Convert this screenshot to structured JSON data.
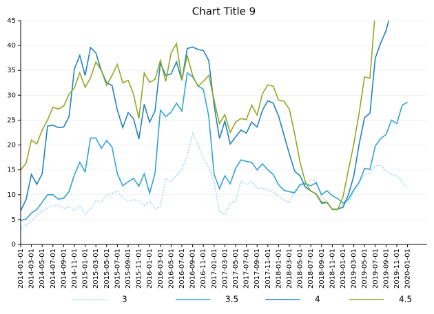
{
  "chart_data": {
    "type": "line",
    "title": "Chart Title 9",
    "categories": [
      "2014-01-01",
      "2014-02-01",
      "2014-03-01",
      "2014-04-01",
      "2014-05-01",
      "2014-06-01",
      "2014-07-01",
      "2014-08-01",
      "2014-09-01",
      "2014-10-01",
      "2014-11-01",
      "2014-12-01",
      "2015-01-01",
      "2015-02-01",
      "2015-03-01",
      "2015-04-01",
      "2015-05-01",
      "2015-06-01",
      "2015-07-01",
      "2015-08-01",
      "2015-09-01",
      "2015-10-01",
      "2015-11-01",
      "2015-12-01",
      "2016-01-01",
      "2016-02-01",
      "2016-03-01",
      "2016-04-01",
      "2016-05-01",
      "2016-06-01",
      "2016-07-01",
      "2016-08-01",
      "2016-09-01",
      "2016-10-01",
      "2016-11-01",
      "2016-12-01",
      "2017-01-01",
      "2017-02-01",
      "2017-03-01",
      "2017-04-01",
      "2017-05-01",
      "2017-06-01",
      "2017-07-01",
      "2017-08-01",
      "2017-09-01",
      "2017-10-01",
      "2017-11-01",
      "2017-12-01",
      "2018-01-01",
      "2018-02-01",
      "2018-03-01",
      "2018-04-01",
      "2018-05-01",
      "2018-06-01",
      "2018-07-01",
      "2018-08-01",
      "2018-09-01",
      "2018-10-01",
      "2018-11-01",
      "2018-12-01",
      "2019-01-01",
      "2019-02-01",
      "2019-03-01",
      "2019-04-01",
      "2019-05-01",
      "2019-06-01",
      "2019-07-01",
      "2019-08-01",
      "2019-09-01",
      "2019-10-01",
      "2019-11-01",
      "2019-12-01",
      "2020-01-01"
    ],
    "series": [
      {
        "name": "3",
        "color": "#9fd8ee",
        "dash": "dotted",
        "values": [
          3.2,
          3.8,
          4.6,
          5.8,
          6.8,
          7.3,
          7.8,
          7.9,
          7.2,
          7.5,
          6.9,
          7.8,
          6.1,
          7.1,
          8.8,
          8.5,
          10,
          10.3,
          10.7,
          9.4,
          8.7,
          9,
          8.8,
          7.8,
          8.7,
          7.1,
          7.7,
          13.3,
          12.6,
          13.8,
          15.2,
          17.9,
          22.3,
          20,
          17.3,
          15.6,
          12.4,
          6.7,
          6,
          8.3,
          8.7,
          12.7,
          12.1,
          12.7,
          11.2,
          11.3,
          11,
          10.5,
          9.7,
          8.9,
          8.4,
          10.8,
          11.8,
          12.1,
          13,
          12.8,
          9.5,
          8.8,
          7.1,
          7,
          8.1,
          8.5,
          10.5,
          12.5,
          14.1,
          14.3,
          15.8,
          16,
          14.8,
          14.1,
          13.8,
          12.6,
          11.4
        ]
      },
      {
        "name": "3.5",
        "color": "#2ea3d6",
        "values": [
          4.8,
          5.1,
          6.3,
          7,
          8.5,
          10,
          10,
          9.1,
          9.3,
          10.6,
          14,
          16.5,
          14.6,
          21.4,
          21.4,
          19.3,
          20.9,
          19.6,
          14.2,
          11.8,
          12.6,
          13.3,
          11.7,
          14.2,
          10.3,
          14.3,
          27,
          25.7,
          26.6,
          28.4,
          26.8,
          34.5,
          33.7,
          31.9,
          31.2,
          25.8,
          14.1,
          11.2,
          13.8,
          12.2,
          15.3,
          17,
          16.7,
          16.5,
          15,
          16.2,
          15,
          14.1,
          12,
          10.9,
          10.6,
          10.4,
          12.1,
          12.2,
          11.8,
          12.4,
          10,
          10.8,
          9.8,
          9.2,
          8.3,
          9.1,
          11,
          12.5,
          15.3,
          15.1,
          19.8,
          21.3,
          22.1,
          25,
          24.3,
          28,
          28.6
        ]
      },
      {
        "name": "4",
        "color": "#1f82c0",
        "values": [
          6.8,
          9,
          14.1,
          12.1,
          14.2,
          23.8,
          24,
          23.5,
          23.6,
          25.7,
          35.3,
          38,
          34,
          39.6,
          38.5,
          35,
          32.5,
          32,
          27,
          23.5,
          26.5,
          25.3,
          21.2,
          28.2,
          24.6,
          26.8,
          36.5,
          34,
          34.3,
          36.7,
          33,
          39.4,
          39.7,
          39.2,
          39,
          37,
          28,
          21.3,
          24.8,
          20.2,
          21.6,
          23,
          22.4,
          24.6,
          23.6,
          27,
          28.9,
          28.4,
          25.8,
          22,
          18.2,
          14.7,
          13.8,
          11.5,
          10.8,
          10.1,
          8.3,
          8.4,
          7.1,
          7.1,
          7.5,
          10,
          13.8,
          20.2,
          25.5,
          26.4,
          37.5,
          40.5,
          43,
          47,
          null,
          null,
          null
        ]
      },
      {
        "name": "4.5",
        "color": "#8fa823",
        "values": [
          15,
          16.3,
          21,
          20.2,
          23,
          25,
          27.6,
          27.2,
          27.8,
          30.2,
          31.5,
          34.5,
          31.6,
          33.5,
          36.7,
          35,
          32,
          34,
          36.2,
          32.5,
          33,
          30.2,
          25.3,
          34.5,
          32.6,
          33.2,
          37,
          32.8,
          38.5,
          40.4,
          33,
          38,
          34,
          31.8,
          32.8,
          34,
          29,
          24.3,
          26.1,
          22.5,
          24.6,
          25.3,
          25.1,
          28,
          26,
          30.3,
          32.1,
          31.8,
          29,
          28.8,
          27.2,
          22.2,
          16.5,
          12.5,
          10.7,
          10.2,
          8.5,
          8.5,
          7,
          7,
          9.6,
          15,
          20.2,
          26.5,
          33.7,
          33.4,
          47,
          null,
          null,
          null,
          null,
          null,
          null
        ]
      }
    ],
    "ylim": [
      0,
      45
    ],
    "yticks": [
      0,
      5,
      10,
      15,
      20,
      25,
      30,
      35,
      40,
      45
    ],
    "grid": true,
    "legend": "bottom"
  }
}
